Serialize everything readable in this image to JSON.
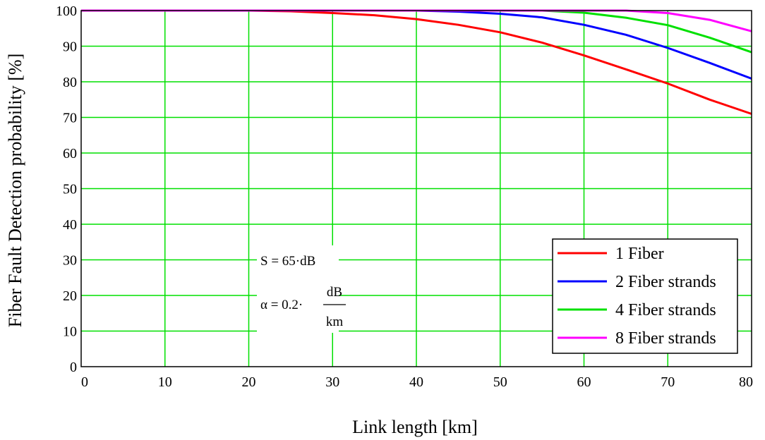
{
  "chart_data": {
    "type": "line",
    "title": "",
    "xlabel": "Link length [km]",
    "ylabel": "Fiber Fault Detection probability [%]",
    "xlim": [
      0,
      80
    ],
    "ylim": [
      0,
      100
    ],
    "x_ticks": [
      "0",
      "10",
      "20",
      "30",
      "40",
      "50",
      "60",
      "70",
      "80"
    ],
    "y_ticks": [
      "0",
      "10",
      "20",
      "30",
      "40",
      "50",
      "60",
      "70",
      "80",
      "90",
      "100"
    ],
    "grid": true,
    "grid_color": "#00e000",
    "legend_position": "bottom-right",
    "x": [
      0,
      10,
      20,
      25,
      30,
      35,
      40,
      45,
      50,
      55,
      60,
      65,
      70,
      75,
      80
    ],
    "series": [
      {
        "name": "1 Fiber",
        "color": "#ff0000",
        "values": [
          100,
          100,
          100,
          99.8,
          99.3,
          98.7,
          97.6,
          96.0,
          93.9,
          91.0,
          87.4,
          83.5,
          79.5,
          75.0,
          71.0
        ]
      },
      {
        "name": "2 Fiber strands",
        "color": "#0000ff",
        "values": [
          100,
          100,
          100,
          100,
          100,
          100,
          100,
          99.7,
          99.1,
          98.1,
          96.0,
          93.2,
          89.5,
          85.3,
          80.9
        ]
      },
      {
        "name": "4 Fiber strands",
        "color": "#00e000",
        "values": [
          100,
          100,
          100,
          100,
          100,
          100,
          100,
          100,
          100,
          100,
          99.4,
          98.0,
          95.9,
          92.4,
          88.3
        ]
      },
      {
        "name": "8 Fiber strands",
        "color": "#ff00ff",
        "values": [
          100,
          100,
          100,
          100,
          100,
          100,
          100,
          100,
          100,
          100,
          100,
          100,
          99.3,
          97.4,
          94.2
        ]
      }
    ],
    "annotations": {
      "s_line": "S = 65·dB",
      "alpha_prefix": "α = 0.2·",
      "alpha_numerator": "dB",
      "alpha_denominator": "km"
    }
  }
}
